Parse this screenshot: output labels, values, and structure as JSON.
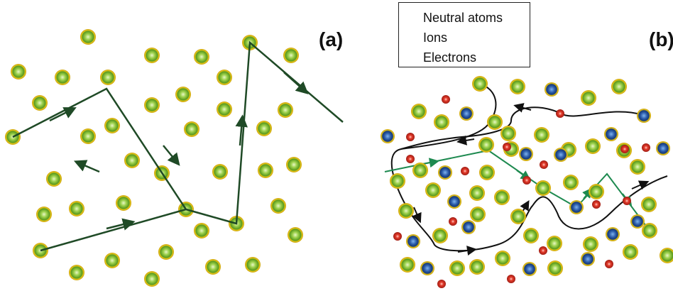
{
  "labels": {
    "panel_a": "(a)",
    "panel_b": "(b)"
  },
  "legend": {
    "neutral": "Neutral atoms",
    "ions": "Ions",
    "electrons": "Electrons"
  },
  "colors": {
    "neutral_fill": "#8cc63f",
    "neutral_ring": "#e8c21a",
    "ion_fill": "#2a5aa8",
    "electron_fill": "#e0302a",
    "path_a": "#1f4a26",
    "path_black": "#111111",
    "path_green": "#1e8a50"
  }
}
